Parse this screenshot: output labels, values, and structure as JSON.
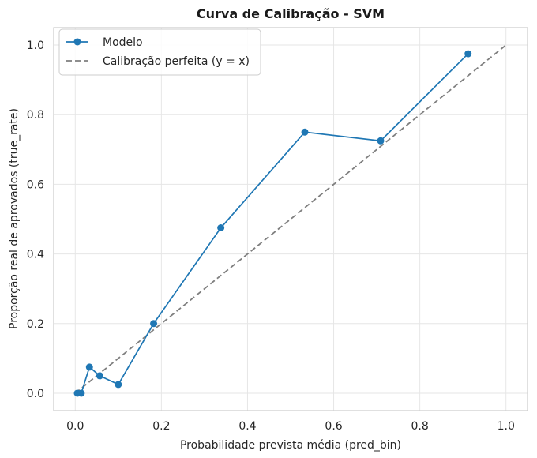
{
  "chart_data": {
    "type": "line",
    "title": "Curva de Calibração - SVM",
    "xlabel": "Probabilidade prevista média (pred_bin)",
    "ylabel": "Proporção real de aprovados (true_rate)",
    "xlim": [
      -0.05,
      1.05
    ],
    "ylim": [
      -0.05,
      1.05
    ],
    "xticks": [
      "0.0",
      "0.2",
      "0.4",
      "0.6",
      "0.8",
      "1.0"
    ],
    "yticks": [
      "0.0",
      "0.2",
      "0.4",
      "0.6",
      "0.8",
      "1.0"
    ],
    "grid": true,
    "legend_position": "top-left",
    "series": [
      {
        "name": "Modelo",
        "style": "solid-with-markers",
        "color": "#1f77b4",
        "points": [
          {
            "x": 0.005,
            "y": 0.0
          },
          {
            "x": 0.014,
            "y": 0.0
          },
          {
            "x": 0.033,
            "y": 0.075
          },
          {
            "x": 0.057,
            "y": 0.05
          },
          {
            "x": 0.1,
            "y": 0.025
          },
          {
            "x": 0.182,
            "y": 0.2
          },
          {
            "x": 0.338,
            "y": 0.475
          },
          {
            "x": 0.533,
            "y": 0.75
          },
          {
            "x": 0.709,
            "y": 0.725
          },
          {
            "x": 0.912,
            "y": 0.975
          }
        ]
      },
      {
        "name": "Calibração perfeita (y = x)",
        "style": "dashed",
        "color": "#7f7f7f",
        "points": [
          {
            "x": 0.0,
            "y": 0.0
          },
          {
            "x": 1.0,
            "y": 1.0
          }
        ]
      }
    ]
  }
}
